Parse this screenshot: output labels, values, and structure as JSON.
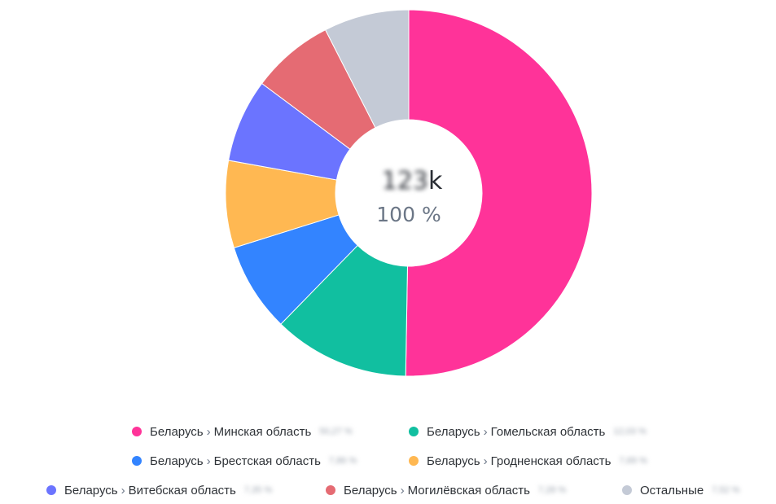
{
  "chart_data": {
    "type": "pie",
    "center": {
      "value_hidden": "123",
      "value_suffix": "k",
      "percent": "100 %"
    },
    "series": [
      {
        "name": "Беларусь",
        "sub": "Минская область",
        "value": 50.27,
        "label": "50,27 %",
        "color": "#ff3399"
      },
      {
        "name": "Беларусь",
        "sub": "Гомельская область",
        "value": 12.03,
        "label": "12,03 %",
        "color": "#11bfa0"
      },
      {
        "name": "Беларусь",
        "sub": "Брестская область",
        "value": 7.86,
        "label": "7,86 %",
        "color": "#3384ff"
      },
      {
        "name": "Беларусь",
        "sub": "Гродненская область",
        "value": 7.69,
        "label": "7,69 %",
        "color": "#ffb852"
      },
      {
        "name": "Беларусь",
        "sub": "Витебская область",
        "value": 7.35,
        "label": "7,35 %",
        "color": "#6b74ff"
      },
      {
        "name": "Беларусь",
        "sub": "Могилёвская область",
        "value": 7.28,
        "label": "7,28 %",
        "color": "#e56b73"
      },
      {
        "name": "Остальные",
        "sub": "",
        "value": 7.52,
        "label": "7,52 %",
        "color": "#c4cad6"
      }
    ]
  },
  "legend": {
    "separator": "›"
  }
}
